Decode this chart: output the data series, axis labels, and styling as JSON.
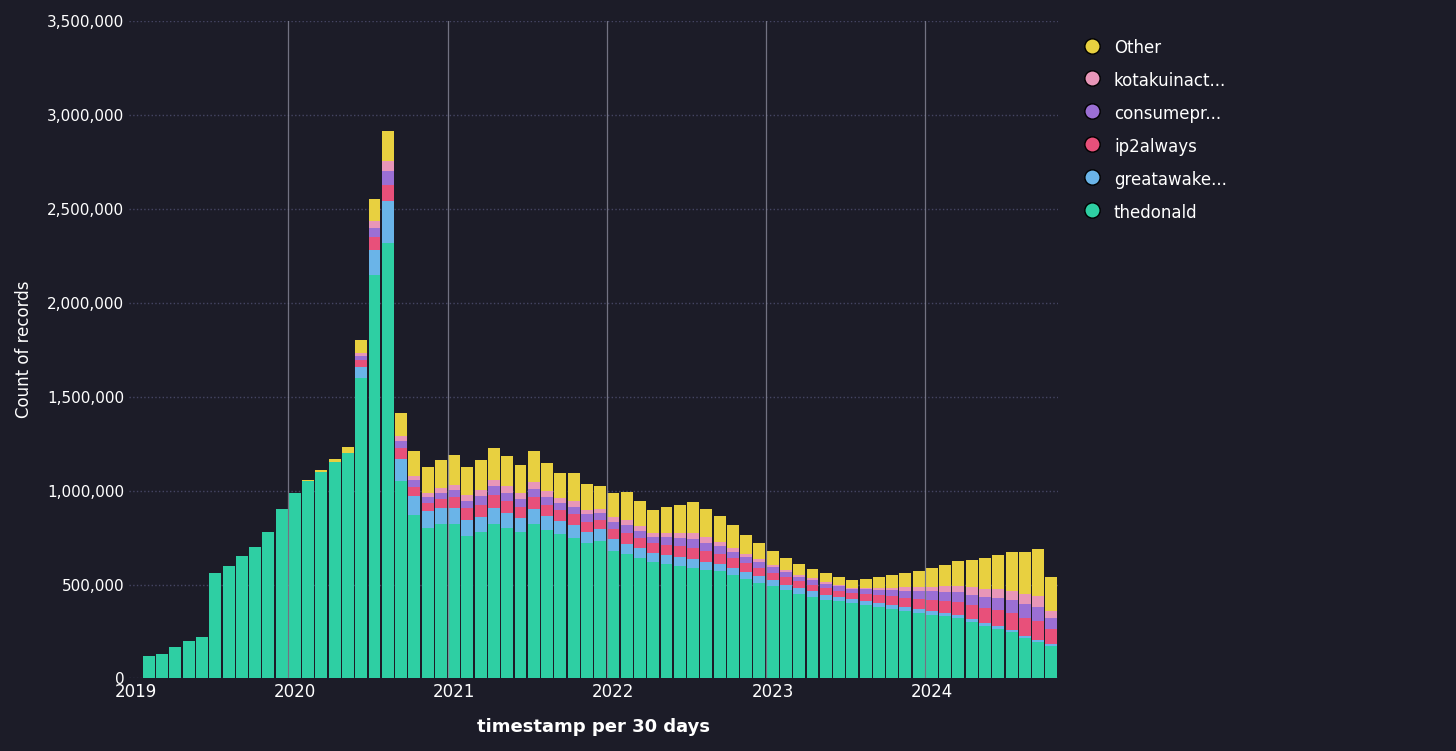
{
  "background_color": "#1c1c28",
  "plot_bg_color": "#1c1c28",
  "text_color": "#ffffff",
  "xlabel": "timestamp per 30 days",
  "ylabel": "Count of records",
  "ylim": [
    0,
    3500000
  ],
  "series_labels": [
    "thedonald",
    "greatawake...",
    "ip2always",
    "consumepr...",
    "kotakuinact...",
    "Other"
  ],
  "series_colors": [
    "#2ecfa3",
    "#6ab4e8",
    "#e8507a",
    "#9b6fd4",
    "#e896b8",
    "#e8d040"
  ],
  "x_tick_labels": [
    "2019",
    "2020",
    "2021",
    "2022",
    "2023",
    "2024"
  ],
  "vline_positions": [
    12,
    24,
    36,
    48,
    60
  ],
  "data": {
    "thedonald": [
      5000,
      120000,
      130000,
      170000,
      200000,
      220000,
      560000,
      600000,
      650000,
      700000,
      780000,
      900000,
      990000,
      1050000,
      1100000,
      1150000,
      1200000,
      1600000,
      2150000,
      2320000,
      1050000,
      870000,
      800000,
      820000,
      820000,
      760000,
      780000,
      820000,
      800000,
      780000,
      820000,
      790000,
      770000,
      750000,
      720000,
      730000,
      680000,
      660000,
      640000,
      620000,
      610000,
      600000,
      590000,
      580000,
      570000,
      550000,
      530000,
      510000,
      490000,
      470000,
      450000,
      435000,
      420000,
      410000,
      400000,
      390000,
      380000,
      370000,
      360000,
      350000,
      340000,
      330000,
      320000,
      300000,
      280000,
      265000,
      245000,
      215000,
      195000,
      175000
    ],
    "greatawake...": [
      0,
      0,
      0,
      0,
      0,
      0,
      0,
      0,
      0,
      0,
      0,
      0,
      0,
      0,
      0,
      0,
      0,
      60000,
      130000,
      220000,
      120000,
      100000,
      90000,
      85000,
      90000,
      85000,
      80000,
      85000,
      80000,
      75000,
      80000,
      75000,
      70000,
      65000,
      60000,
      65000,
      60000,
      55000,
      52000,
      50000,
      48000,
      46000,
      44000,
      42000,
      40000,
      38000,
      36000,
      34000,
      32000,
      30000,
      29000,
      28000,
      27000,
      26000,
      25000,
      24000,
      23000,
      22000,
      21000,
      20000,
      19000,
      18000,
      17000,
      16000,
      15000,
      14000,
      13000,
      12000,
      11000,
      10000
    ],
    "ip2always": [
      0,
      0,
      0,
      0,
      0,
      0,
      0,
      0,
      0,
      0,
      0,
      0,
      0,
      0,
      0,
      0,
      0,
      35000,
      70000,
      85000,
      55000,
      50000,
      45000,
      50000,
      55000,
      60000,
      65000,
      70000,
      65000,
      60000,
      65000,
      60000,
      55000,
      58000,
      55000,
      50000,
      55000,
      58000,
      55000,
      50000,
      55000,
      58000,
      62000,
      58000,
      55000,
      52000,
      48000,
      45000,
      42000,
      40000,
      38000,
      36000,
      34000,
      32000,
      30000,
      35000,
      40000,
      45000,
      50000,
      55000,
      60000,
      65000,
      70000,
      75000,
      80000,
      85000,
      90000,
      95000,
      100000,
      80000
    ],
    "consumepr...": [
      0,
      0,
      0,
      0,
      0,
      0,
      0,
      0,
      0,
      0,
      0,
      0,
      0,
      0,
      0,
      0,
      0,
      20000,
      50000,
      75000,
      40000,
      35000,
      32000,
      35000,
      38000,
      42000,
      45000,
      48000,
      45000,
      42000,
      45000,
      42000,
      38000,
      42000,
      38000,
      35000,
      38000,
      42000,
      38000,
      35000,
      38000,
      42000,
      45000,
      42000,
      38000,
      35000,
      32000,
      30000,
      28000,
      26000,
      25000,
      24000,
      23000,
      22000,
      21000,
      25000,
      28000,
      32000,
      36000,
      40000,
      44000,
      48000,
      52000,
      56000,
      60000,
      64000,
      68000,
      72000,
      76000,
      55000
    ],
    "kotakuinact...": [
      0,
      0,
      0,
      0,
      0,
      0,
      0,
      0,
      0,
      0,
      0,
      0,
      0,
      0,
      0,
      0,
      0,
      15000,
      35000,
      55000,
      28000,
      24000,
      20000,
      24000,
      28000,
      30000,
      34000,
      36000,
      32000,
      30000,
      34000,
      30000,
      26000,
      30000,
      26000,
      22000,
      26000,
      30000,
      26000,
      22000,
      26000,
      30000,
      34000,
      30000,
      26000,
      22000,
      18000,
      16000,
      14000,
      12000,
      11000,
      10000,
      9000,
      8000,
      7000,
      10000,
      12000,
      15000,
      18000,
      22000,
      26000,
      30000,
      34000,
      38000,
      42000,
      46000,
      50000,
      54000,
      58000,
      40000
    ],
    "Other": [
      0,
      0,
      0,
      0,
      0,
      0,
      0,
      0,
      0,
      0,
      0,
      0,
      0,
      5000,
      10000,
      20000,
      30000,
      70000,
      120000,
      160000,
      120000,
      130000,
      140000,
      150000,
      160000,
      150000,
      160000,
      170000,
      160000,
      150000,
      165000,
      150000,
      135000,
      150000,
      135000,
      120000,
      130000,
      150000,
      135000,
      120000,
      135000,
      150000,
      165000,
      150000,
      135000,
      120000,
      100000,
      85000,
      75000,
      65000,
      58000,
      52000,
      48000,
      44000,
      40000,
      48000,
      55000,
      65000,
      75000,
      85000,
      100000,
      115000,
      130000,
      145000,
      165000,
      185000,
      205000,
      225000,
      250000,
      180000
    ]
  },
  "num_bars": 70
}
